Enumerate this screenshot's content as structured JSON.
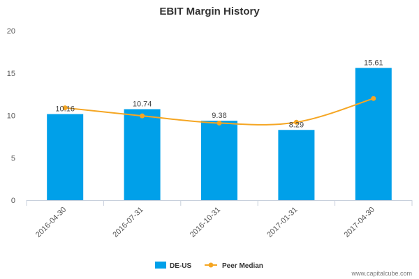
{
  "chart_data": {
    "type": "bar",
    "title": "EBIT Margin History",
    "categories": [
      "2016-04-30",
      "2016-07-31",
      "2016-10-31",
      "2017-01-31",
      "2017-04-30"
    ],
    "series": [
      {
        "name": "DE-US",
        "type": "bar",
        "values": [
          10.16,
          10.74,
          9.38,
          8.29,
          15.61
        ],
        "color": "#00a0e9"
      },
      {
        "name": "Peer Median",
        "type": "line",
        "values": [
          10.9,
          9.95,
          9.1,
          9.2,
          12.0
        ],
        "color": "#f5a623"
      }
    ],
    "data_labels": [
      "10.16",
      "10.74",
      "9.38",
      "8.29",
      "15.61"
    ],
    "ylim": [
      0,
      20
    ],
    "yticks": [
      0,
      5,
      10,
      15,
      20
    ],
    "grid": false,
    "legend": "bottom-center"
  },
  "watermark": "www.capitalcube.com"
}
